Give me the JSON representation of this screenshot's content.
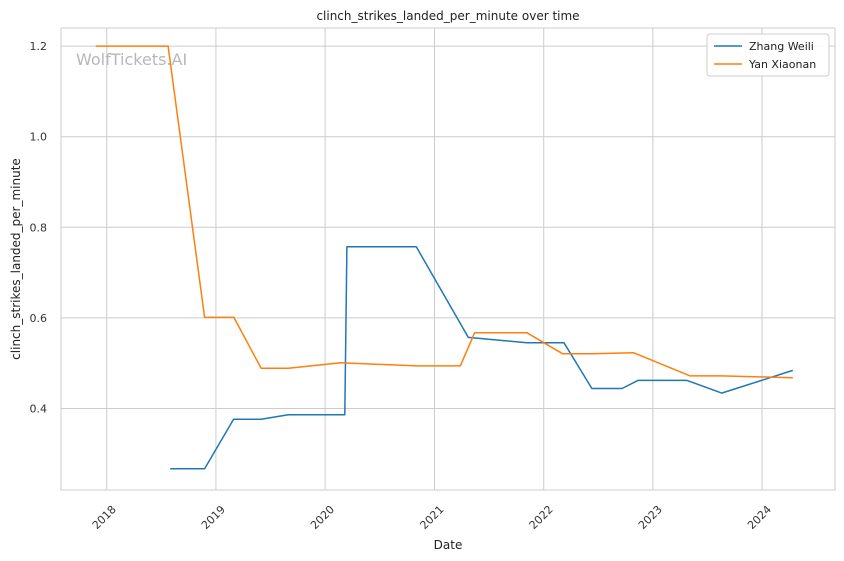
{
  "chart_data": {
    "type": "line",
    "title": "clinch_strikes_landed_per_minute over time",
    "xlabel": "Date",
    "ylabel": "clinch_strikes_landed_per_minute",
    "watermark": "WolfTickets.AI",
    "x_ticks": [
      "2018",
      "2019",
      "2020",
      "2021",
      "2022",
      "2023",
      "2024"
    ],
    "y_ticks": [
      "0.4",
      "0.6",
      "0.8",
      "1.0",
      "1.2"
    ],
    "xlim": [
      "2017-08-01",
      "2024-09-01"
    ],
    "ylim": [
      0.22,
      1.24
    ],
    "grid": true,
    "legend_position": "top-right",
    "colors": {
      "zhang": "#1f77b4",
      "yan": "#ff7f0e",
      "grid": "#cccccc",
      "spine": "#cccccc"
    },
    "series": [
      {
        "name": "Zhang Weili",
        "points": [
          [
            "2018-08-01",
            0.267
          ],
          [
            "2018-11-24",
            0.267
          ],
          [
            "2019-03-01",
            0.376
          ],
          [
            "2019-06-01",
            0.376
          ],
          [
            "2019-08-31",
            0.386
          ],
          [
            "2020-03-07",
            0.386
          ],
          [
            "2020-03-14",
            0.757
          ],
          [
            "2020-11-01",
            0.757
          ],
          [
            "2021-04-24",
            0.557
          ],
          [
            "2021-11-06",
            0.545
          ],
          [
            "2022-03-10",
            0.545
          ],
          [
            "2022-06-11",
            0.444
          ],
          [
            "2022-09-20",
            0.444
          ],
          [
            "2022-11-12",
            0.462
          ],
          [
            "2023-04-25",
            0.462
          ],
          [
            "2023-08-19",
            0.434
          ],
          [
            "2024-04-13",
            0.484
          ]
        ]
      },
      {
        "name": "Yan Xiaonan",
        "points": [
          [
            "2017-11-25",
            1.2
          ],
          [
            "2018-07-25",
            1.2
          ],
          [
            "2018-11-24",
            0.601
          ],
          [
            "2019-03-02",
            0.601
          ],
          [
            "2019-06-01",
            0.489
          ],
          [
            "2019-08-31",
            0.489
          ],
          [
            "2020-02-23",
            0.501
          ],
          [
            "2020-11-01",
            0.494
          ],
          [
            "2021-03-28",
            0.494
          ],
          [
            "2021-05-15",
            0.567
          ],
          [
            "2021-11-06",
            0.567
          ],
          [
            "2022-03-05",
            0.521
          ],
          [
            "2022-06-11",
            0.521
          ],
          [
            "2022-10-29",
            0.523
          ],
          [
            "2023-05-06",
            0.472
          ],
          [
            "2023-08-19",
            0.472
          ],
          [
            "2024-04-13",
            0.468
          ]
        ]
      }
    ]
  }
}
